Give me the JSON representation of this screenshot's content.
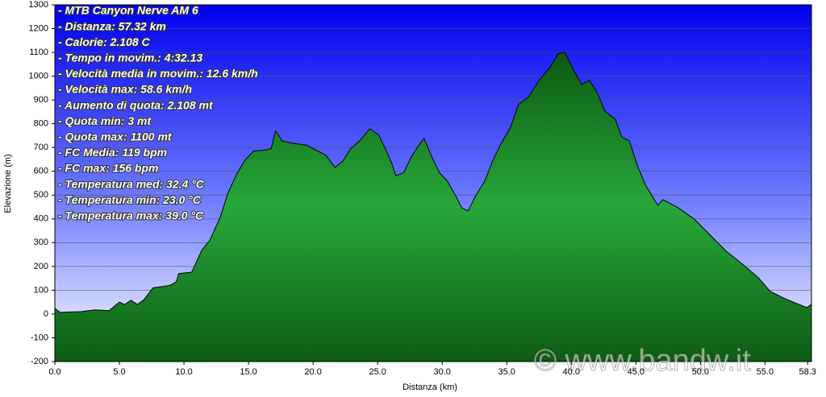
{
  "chart_data": {
    "type": "area",
    "xlabel": "Distanza   (km)",
    "ylabel": "Elevazione (m)",
    "annotations": [
      "- MTB Canyon Nerve AM 6",
      "- Distanza: 57.32 km",
      "- Calorie: 2.108 C",
      "- Tempo in movim.: 4:32.13",
      "- Velocità media in movim.: 12.6 km/h",
      "- Velocità max: 58.6 km/h",
      "- Aumento di quota: 2.108 mt",
      "- Quota min: 3 mt",
      "- Quota max: 1100 mt",
      "- FC Media: 119 bpm",
      "- FC max: 156 bpm",
      "- Temperatura med: 32.4 °C",
      "- Temperatura min: 23.0 °C",
      "- Temperatura max: 39.0 °C"
    ],
    "watermark": "© www.bandw.it",
    "x": [
      0,
      0.4,
      2,
      3.1,
      4.2,
      5,
      5.4,
      5.9,
      6.4,
      6.9,
      7.6,
      8.9,
      9.4,
      9.6,
      10.6,
      11.4,
      12,
      12.8,
      13.4,
      14.1,
      14.7,
      15.4,
      16.4,
      16.75,
      17.1,
      17.6,
      18.4,
      19.5,
      20.2,
      21,
      21.7,
      22.3,
      22.9,
      23.6,
      24.4,
      25.1,
      25.6,
      26.1,
      26.4,
      27,
      27.6,
      28.3,
      28.6,
      29.2,
      29.8,
      30.4,
      31.1,
      31.5,
      32,
      32.6,
      33.3,
      33.9,
      34.5,
      35.3,
      35.9,
      36.7,
      37.5,
      38.3,
      39,
      39.5,
      40.1,
      40.8,
      41.4,
      42,
      42.6,
      43.4,
      43.9,
      44.5,
      45.1,
      45.75,
      46.7,
      47.1,
      48.25,
      49.5,
      50.75,
      52,
      53.25,
      54.5,
      55.4,
      56.4,
      57.6,
      58.25,
      58.6
    ],
    "series": [
      {
        "color": "#1a9a2a",
        "values": [
          24,
          7,
          10,
          17,
          14,
          50,
          40,
          58,
          40,
          60,
          110,
          120,
          135,
          170,
          176,
          270,
          310,
          405,
          508,
          590,
          645,
          685,
          690,
          695,
          770,
          728,
          718,
          710,
          690,
          667,
          616,
          643,
          694,
          728,
          779,
          752,
          694,
          633,
          582,
          593,
          660,
          718,
          738,
          660,
          593,
          559,
          491,
          447,
          433,
          498,
          559,
          643,
          711,
          786,
          880,
          914,
          982,
          1033,
          1094,
          1100,
          1033,
          965,
          982,
          931,
          853,
          819,
          745,
          728,
          626,
          542,
          457,
          481,
          447,
          400,
          332,
          264,
          210,
          152,
          95,
          68,
          41,
          27,
          41
        ]
      }
    ],
    "xlim": [
      0,
      58.6
    ],
    "xticks": [
      {
        "value": 0,
        "label": "0.0"
      },
      {
        "value": 5,
        "label": "5.0"
      },
      {
        "value": 10,
        "label": "10.0"
      },
      {
        "value": 15,
        "label": "15.0"
      },
      {
        "value": 20,
        "label": "20.0"
      },
      {
        "value": 25,
        "label": "25.0"
      },
      {
        "value": 30,
        "label": "30.0"
      },
      {
        "value": 35,
        "label": "35.0"
      },
      {
        "value": 40,
        "label": "40.0"
      },
      {
        "value": 45,
        "label": "45.0"
      },
      {
        "value": 50,
        "label": "50.0"
      },
      {
        "value": 55,
        "label": "55.0"
      },
      {
        "value": 58.3,
        "label": "58.3"
      }
    ],
    "ylim": [
      -200,
      1300
    ],
    "yticks": [
      -200,
      -100,
      0,
      100,
      200,
      300,
      400,
      500,
      600,
      700,
      800,
      900,
      1000,
      1100,
      1200,
      1300
    ],
    "grid": true
  }
}
